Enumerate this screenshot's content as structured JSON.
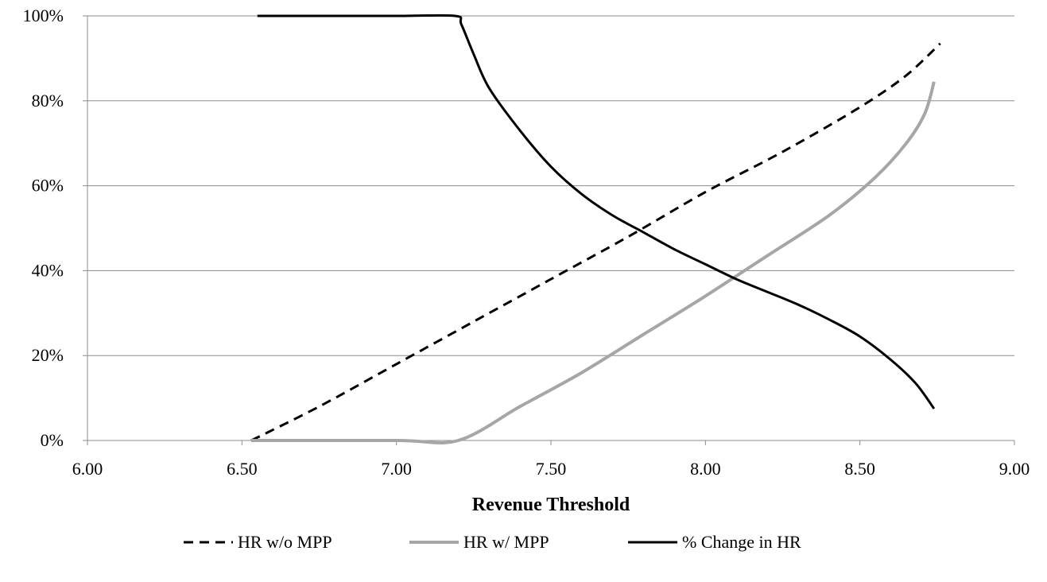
{
  "chart_data": {
    "type": "line",
    "title": "",
    "xlabel": "Revenue Threshold",
    "ylabel": "",
    "xlim": [
      6.0,
      9.0
    ],
    "ylim": [
      0,
      100
    ],
    "x_ticks": [
      "6.00",
      "6.50",
      "7.00",
      "7.50",
      "8.00",
      "8.50",
      "9.00"
    ],
    "y_ticks": [
      "0%",
      "20%",
      "40%",
      "60%",
      "80%",
      "100%"
    ],
    "grid": "horizontal",
    "legend_position": "bottom",
    "series": [
      {
        "name": "HR w/o MPP",
        "style": "dashed",
        "color": "#000000",
        "points": [
          [
            6.53,
            0
          ],
          [
            6.75,
            8
          ],
          [
            7.0,
            18
          ],
          [
            7.25,
            28
          ],
          [
            7.5,
            38
          ],
          [
            7.75,
            48
          ],
          [
            8.0,
            58.5
          ],
          [
            8.25,
            68
          ],
          [
            8.5,
            78.5
          ],
          [
            8.65,
            86
          ],
          [
            8.76,
            93.5
          ]
        ]
      },
      {
        "name": "HR w/ MPP",
        "style": "solid",
        "color": "#a6a6a6",
        "points": [
          [
            6.53,
            0
          ],
          [
            7.0,
            0
          ],
          [
            7.2,
            0
          ],
          [
            7.4,
            8
          ],
          [
            7.6,
            16
          ],
          [
            7.8,
            25
          ],
          [
            8.0,
            34
          ],
          [
            8.2,
            43.5
          ],
          [
            8.4,
            53
          ],
          [
            8.55,
            62
          ],
          [
            8.65,
            70
          ],
          [
            8.71,
            77
          ],
          [
            8.74,
            84.5
          ]
        ]
      },
      {
        "name": "% Change in HR",
        "style": "solid",
        "color": "#000000",
        "points": [
          [
            6.55,
            100
          ],
          [
            7.0,
            100
          ],
          [
            7.19,
            100
          ],
          [
            7.21,
            98
          ],
          [
            7.25,
            91
          ],
          [
            7.3,
            83
          ],
          [
            7.4,
            73
          ],
          [
            7.5,
            64.5
          ],
          [
            7.6,
            58
          ],
          [
            7.7,
            53
          ],
          [
            7.8,
            49
          ],
          [
            7.9,
            45
          ],
          [
            8.0,
            41.5
          ],
          [
            8.1,
            38
          ],
          [
            8.2,
            35
          ],
          [
            8.3,
            32
          ],
          [
            8.4,
            28.5
          ],
          [
            8.5,
            24.5
          ],
          [
            8.6,
            19
          ],
          [
            8.68,
            13.5
          ],
          [
            8.74,
            7.5
          ]
        ]
      }
    ]
  }
}
